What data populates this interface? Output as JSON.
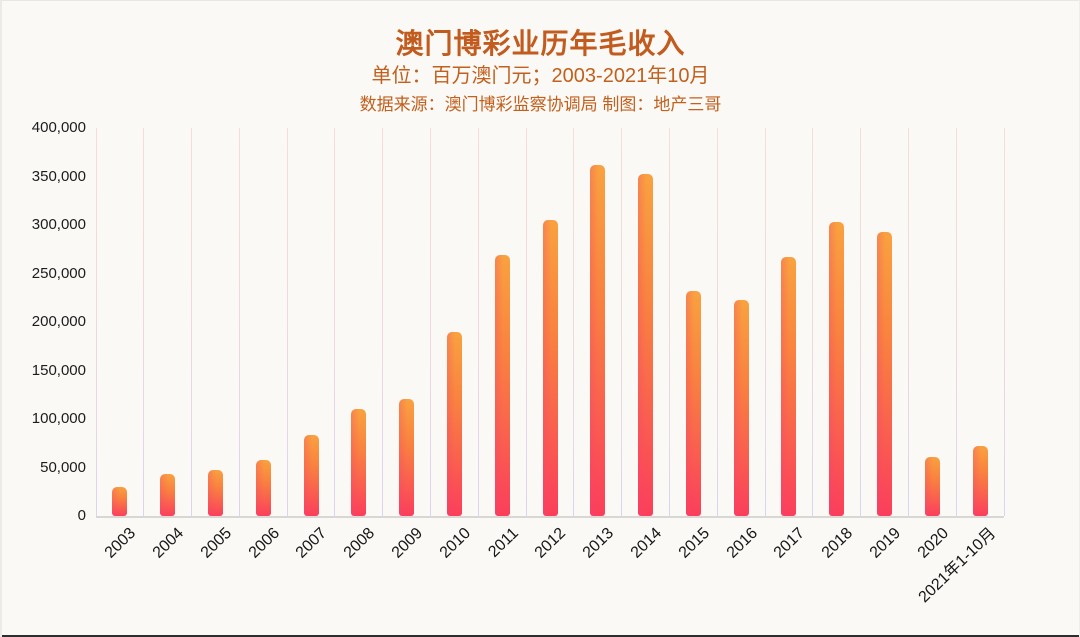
{
  "header": {
    "title": "澳门博彩业历年毛收入",
    "subtitle": "单位：百万澳门元；2003-2021年10月",
    "source": "数据来源：澳门博彩监察协调局  制图：地产三哥"
  },
  "chart_data": {
    "type": "bar",
    "title": "澳门博彩业历年毛收入",
    "unit": "百万澳门元",
    "period": "2003-2021年10月",
    "categories": [
      "2003",
      "2004",
      "2005",
      "2006",
      "2007",
      "2008",
      "2009",
      "2010",
      "2011",
      "2012",
      "2013",
      "2014",
      "2015",
      "2016",
      "2017",
      "2018",
      "2019",
      "2020",
      "2021年1-10月"
    ],
    "values": [
      30315,
      43511,
      47134,
      57521,
      83847,
      109826,
      120383,
      189588,
      269058,
      305235,
      361866,
      352714,
      231811,
      223210,
      266581,
      302846,
      292455,
      60441,
      72157
    ],
    "ylim": [
      0,
      400000
    ],
    "ytick_step": 50000,
    "ytick_labels": [
      "0",
      "50,000",
      "100,000",
      "150,000",
      "200,000",
      "250,000",
      "300,000",
      "350,000",
      "400,000"
    ],
    "grid": "vertical-only",
    "legend": "none",
    "x_label_rotation_deg": -44
  },
  "colors": {
    "heading_text": "#c25c1e",
    "page_background": "#faf9f6",
    "bar_gradient_top": "#f9a23f",
    "bar_gradient_bottom": "#fb3e5b",
    "bar_left_tint": "#f63e76",
    "gridline_top": "#f7ddd6",
    "gridline_bottom": "#dcd3f0",
    "axis_line": "#d8d7d4",
    "tick_text": "#1c1c1c",
    "window_bottom_edge": "#2d2d2d"
  }
}
